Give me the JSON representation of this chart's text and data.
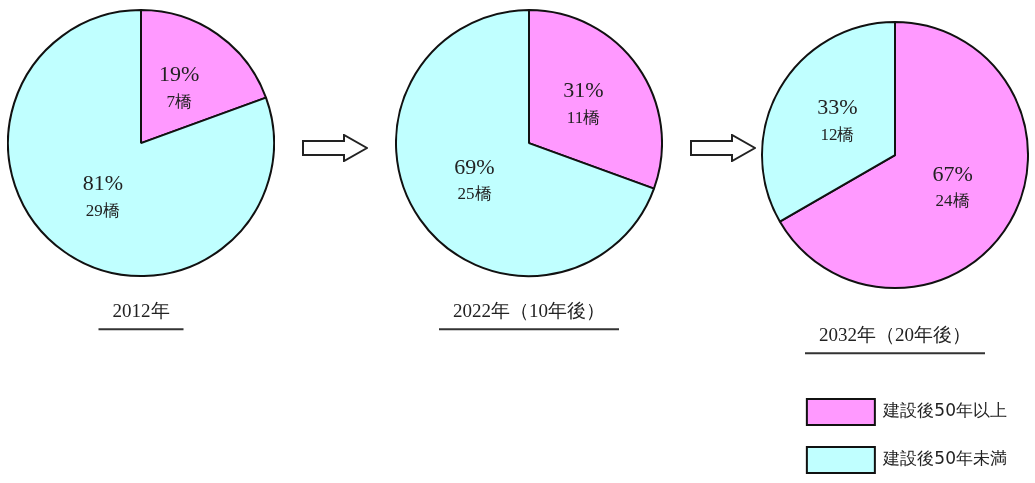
{
  "chart_data": [
    {
      "type": "pie",
      "title": "2012年",
      "categories": [
        null,
        null
      ],
      "values": [
        7,
        29
      ],
      "colors": [
        "#ff99ff",
        "#c0ffff"
      ],
      "value_labels": [
        "19%\n7橋",
        "81%\n29橋"
      ]
    },
    {
      "type": "pie",
      "title": "2022年（10年後）",
      "categories": [
        null,
        null
      ],
      "values": [
        11,
        25
      ],
      "colors": [
        "#ff99ff",
        "#c0ffff"
      ],
      "value_labels": [
        "31%\n11橋",
        "69%\n25橋"
      ]
    },
    {
      "type": "pie",
      "title": "2032年（20年後）",
      "categories": [
        "建設後50年以上",
        "建設後50年未満"
      ],
      "values": [
        24,
        12
      ],
      "colors": [
        "#ff99ff",
        "#c0ffff"
      ],
      "value_labels": [
        "67%\n24橋",
        "33%\n12橋"
      ],
      "legend": "bottom right"
    }
  ]
}
